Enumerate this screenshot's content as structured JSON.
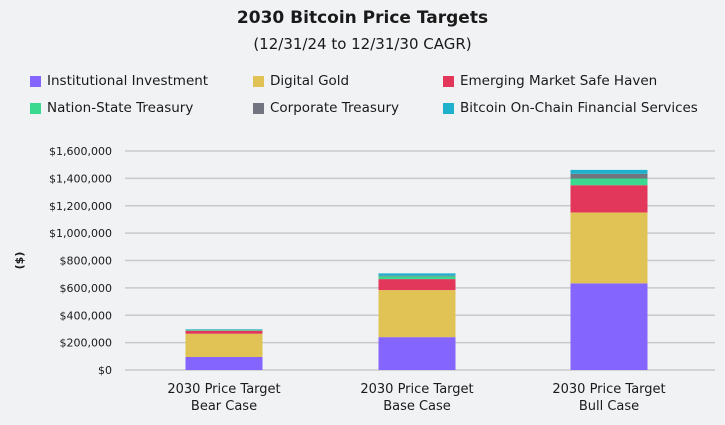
{
  "chart_data": {
    "type": "bar",
    "stacked": true,
    "title": "2030 Bitcoin Price Targets",
    "subtitle": "(12/31/24 to 12/31/30 CAGR)",
    "ylabel": "($)",
    "xlabel": "",
    "ylim": [
      0,
      1600000
    ],
    "yticks": [
      "$0",
      "$200,000",
      "$400,000",
      "$600,000",
      "$800,000",
      "$1,000,000",
      "$1,200,000",
      "$1,400,000",
      "$1,600,000"
    ],
    "grid": true,
    "legend_position": "top",
    "categories": [
      [
        "2030 Price Target",
        "Bear Case"
      ],
      [
        "2030 Price Target",
        "Base Case"
      ],
      [
        "2030 Price Target",
        "Bull Case"
      ]
    ],
    "series": [
      {
        "name": "Institutional Investment",
        "color": "#8466ff",
        "values": [
          95000,
          240000,
          633000
        ]
      },
      {
        "name": "Digital Gold",
        "color": "#e0c255",
        "values": [
          170000,
          344000,
          518000
        ]
      },
      {
        "name": "Emerging Market Safe Haven",
        "color": "#e2365b",
        "values": [
          22000,
          80000,
          199000
        ]
      },
      {
        "name": "Nation-State Treasury",
        "color": "#3bd890",
        "values": [
          5000,
          20000,
          49000
        ]
      },
      {
        "name": "Corporate Treasury",
        "color": "#72747f",
        "values": [
          2000,
          5000,
          34000
        ]
      },
      {
        "name": "Bitcoin On-Chain Financial Services",
        "color": "#1fb1cc",
        "values": [
          4000,
          17000,
          29000
        ]
      }
    ]
  }
}
